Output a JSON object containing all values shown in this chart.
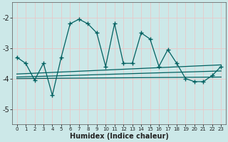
{
  "xlabel": "Humidex (Indice chaleur)",
  "background_color": "#cce8e8",
  "grid_color": "#e8c8c8",
  "line_color": "#006060",
  "xlim": [
    -0.5,
    23.5
  ],
  "ylim": [
    -5.5,
    -1.5
  ],
  "yticks": [
    -5,
    -4,
    -3,
    -2
  ],
  "xticks": [
    0,
    1,
    2,
    3,
    4,
    5,
    6,
    7,
    8,
    9,
    10,
    11,
    12,
    13,
    14,
    15,
    16,
    17,
    18,
    19,
    20,
    21,
    22,
    23
  ],
  "series1_x": [
    0,
    1,
    2,
    3,
    4,
    5,
    6,
    7,
    8,
    9,
    10,
    11,
    12,
    13,
    14,
    15,
    16,
    17,
    18,
    19,
    20,
    21,
    22,
    23
  ],
  "series1_y": [
    -3.3,
    -3.5,
    -4.05,
    -3.5,
    -4.55,
    -3.3,
    -2.2,
    -2.05,
    -2.2,
    -2.5,
    -3.6,
    -2.2,
    -3.5,
    -3.5,
    -2.5,
    -2.7,
    -3.6,
    -3.05,
    -3.5,
    -4.0,
    -4.1,
    -4.1,
    -3.9,
    -3.6
  ],
  "series2_x": [
    0,
    23
  ],
  "series2_y": [
    -3.85,
    -3.55
  ],
  "series3_x": [
    0,
    23
  ],
  "series3_y": [
    -3.95,
    -3.75
  ],
  "series4_x": [
    0,
    23
  ],
  "series4_y": [
    -4.0,
    -3.95
  ]
}
